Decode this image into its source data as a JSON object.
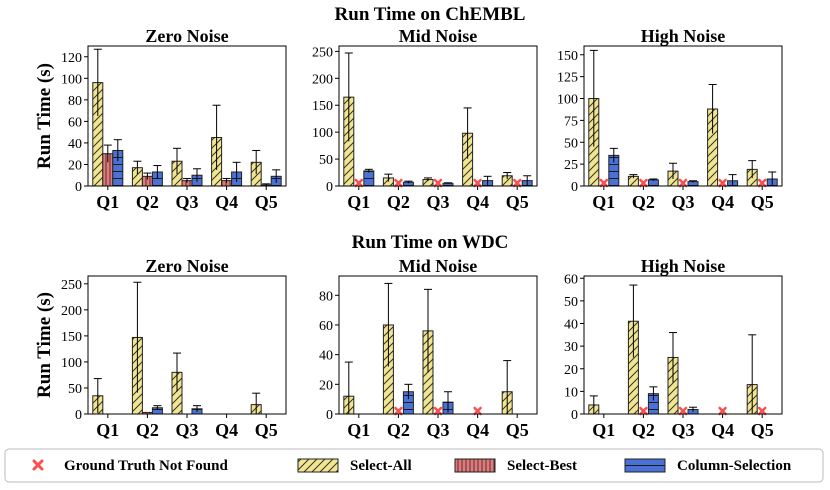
{
  "legend": {
    "not_found": "Ground Truth Not Found",
    "select_all": "Select-All",
    "select_best": "Select-Best",
    "column_selection": "Column-Selection"
  },
  "colors": {
    "select_all": "#f2e58f",
    "select_best": "#e8777a",
    "column_selection": "#4a72d6",
    "not_found": "#ff4d4d"
  },
  "chart_data": [
    {
      "type": "bar",
      "group_title": "Run Time on ChEMBL",
      "title": "Zero Noise",
      "ylabel": "Run Time (s)",
      "categories": [
        "Q1",
        "Q2",
        "Q3",
        "Q4",
        "Q5"
      ],
      "ylim": [
        0,
        130
      ],
      "yticks": [
        0,
        20,
        40,
        60,
        80,
        100,
        120
      ],
      "series": [
        {
          "name": "Select-All",
          "values": [
            96,
            17,
            23,
            45,
            22
          ],
          "errors": [
            31,
            6,
            12,
            30,
            11
          ]
        },
        {
          "name": "Select-Best",
          "values": [
            30,
            9,
            5,
            5,
            1
          ],
          "errors": [
            8,
            3,
            2,
            2,
            1
          ]
        },
        {
          "name": "Column-Selection",
          "values": [
            33,
            13,
            10,
            13,
            9
          ],
          "errors": [
            10,
            6,
            6,
            9,
            6
          ]
        }
      ],
      "not_found": []
    },
    {
      "type": "bar",
      "group_title": "Run Time on ChEMBL",
      "title": "Mid Noise",
      "ylabel": "",
      "categories": [
        "Q1",
        "Q2",
        "Q3",
        "Q4",
        "Q5"
      ],
      "ylim": [
        0,
        260
      ],
      "yticks": [
        0,
        50,
        100,
        150,
        200,
        250
      ],
      "series": [
        {
          "name": "Select-All",
          "values": [
            165,
            15,
            12,
            98,
            19
          ],
          "errors": [
            82,
            7,
            3,
            47,
            6
          ]
        },
        {
          "name": "Select-Best",
          "values": [
            0,
            0,
            0,
            0,
            0
          ],
          "errors": [
            0,
            0,
            0,
            0,
            0
          ]
        },
        {
          "name": "Column-Selection",
          "values": [
            28,
            7,
            5,
            10,
            10
          ],
          "errors": [
            3,
            2,
            1,
            8,
            9
          ]
        }
      ],
      "not_found": [
        "Q1",
        "Q2",
        "Q3",
        "Q4",
        "Q5"
      ]
    },
    {
      "type": "bar",
      "group_title": "Run Time on ChEMBL",
      "title": "High Noise",
      "ylabel": "",
      "categories": [
        "Q1",
        "Q2",
        "Q3",
        "Q4",
        "Q5"
      ],
      "ylim": [
        0,
        160
      ],
      "yticks": [
        0,
        25,
        50,
        75,
        100,
        125,
        150
      ],
      "series": [
        {
          "name": "Select-All",
          "values": [
            100,
            11,
            17,
            88,
            19
          ],
          "errors": [
            55,
            2,
            9,
            28,
            10
          ]
        },
        {
          "name": "Select-Best",
          "values": [
            0,
            0,
            0,
            0,
            0
          ],
          "errors": [
            0,
            0,
            0,
            0,
            0
          ]
        },
        {
          "name": "Column-Selection",
          "values": [
            35,
            7,
            5,
            6,
            8
          ],
          "errors": [
            8,
            1,
            1,
            7,
            8
          ]
        }
      ],
      "not_found": [
        "Q1",
        "Q2",
        "Q3",
        "Q4",
        "Q5"
      ]
    },
    {
      "type": "bar",
      "group_title": "Run Time on WDC",
      "title": "Zero Noise",
      "ylabel": "Run Time (s)",
      "categories": [
        "Q1",
        "Q2",
        "Q3",
        "Q4",
        "Q5"
      ],
      "ylim": [
        0,
        265
      ],
      "yticks": [
        0,
        50,
        100,
        150,
        200,
        250
      ],
      "series": [
        {
          "name": "Select-All",
          "values": [
            35,
            147,
            80,
            0,
            18
          ],
          "errors": [
            33,
            106,
            37,
            0,
            22
          ]
        },
        {
          "name": "Select-Best",
          "values": [
            0,
            3,
            0,
            0,
            0
          ],
          "errors": [
            0,
            0,
            0,
            0,
            0
          ]
        },
        {
          "name": "Column-Selection",
          "values": [
            0,
            12,
            10,
            0,
            0
          ],
          "errors": [
            0,
            4,
            6,
            0,
            0
          ]
        }
      ],
      "not_found": []
    },
    {
      "type": "bar",
      "group_title": "Run Time on WDC",
      "title": "Mid Noise",
      "ylabel": "",
      "categories": [
        "Q1",
        "Q2",
        "Q3",
        "Q4",
        "Q5"
      ],
      "ylim": [
        0,
        93
      ],
      "yticks": [
        0,
        20,
        40,
        60,
        80
      ],
      "series": [
        {
          "name": "Select-All",
          "values": [
            12,
            60,
            56,
            0,
            15
          ],
          "errors": [
            23,
            28,
            28,
            0,
            21
          ]
        },
        {
          "name": "Select-Best",
          "values": [
            0,
            0,
            0,
            0,
            0
          ],
          "errors": [
            0,
            0,
            0,
            0,
            0
          ]
        },
        {
          "name": "Column-Selection",
          "values": [
            0,
            15,
            8,
            0,
            0
          ],
          "errors": [
            0,
            5,
            7,
            0,
            0
          ]
        }
      ],
      "not_found": [
        "Q2",
        "Q3",
        "Q4"
      ]
    },
    {
      "type": "bar",
      "group_title": "Run Time on WDC",
      "title": "High Noise",
      "ylabel": "",
      "categories": [
        "Q1",
        "Q2",
        "Q3",
        "Q4",
        "Q5"
      ],
      "ylim": [
        0,
        61
      ],
      "yticks": [
        0,
        10,
        20,
        30,
        40,
        50,
        60
      ],
      "series": [
        {
          "name": "Select-All",
          "values": [
            4,
            41,
            25,
            0,
            13
          ],
          "errors": [
            4,
            16,
            11,
            0,
            22
          ]
        },
        {
          "name": "Select-Best",
          "values": [
            0,
            0,
            0,
            0,
            0
          ],
          "errors": [
            0,
            0,
            0,
            0,
            0
          ]
        },
        {
          "name": "Column-Selection",
          "values": [
            0,
            9,
            2,
            0,
            0
          ],
          "errors": [
            0,
            3,
            1,
            0,
            0
          ]
        }
      ],
      "not_found": [
        "Q2",
        "Q3",
        "Q4",
        "Q5"
      ]
    }
  ]
}
